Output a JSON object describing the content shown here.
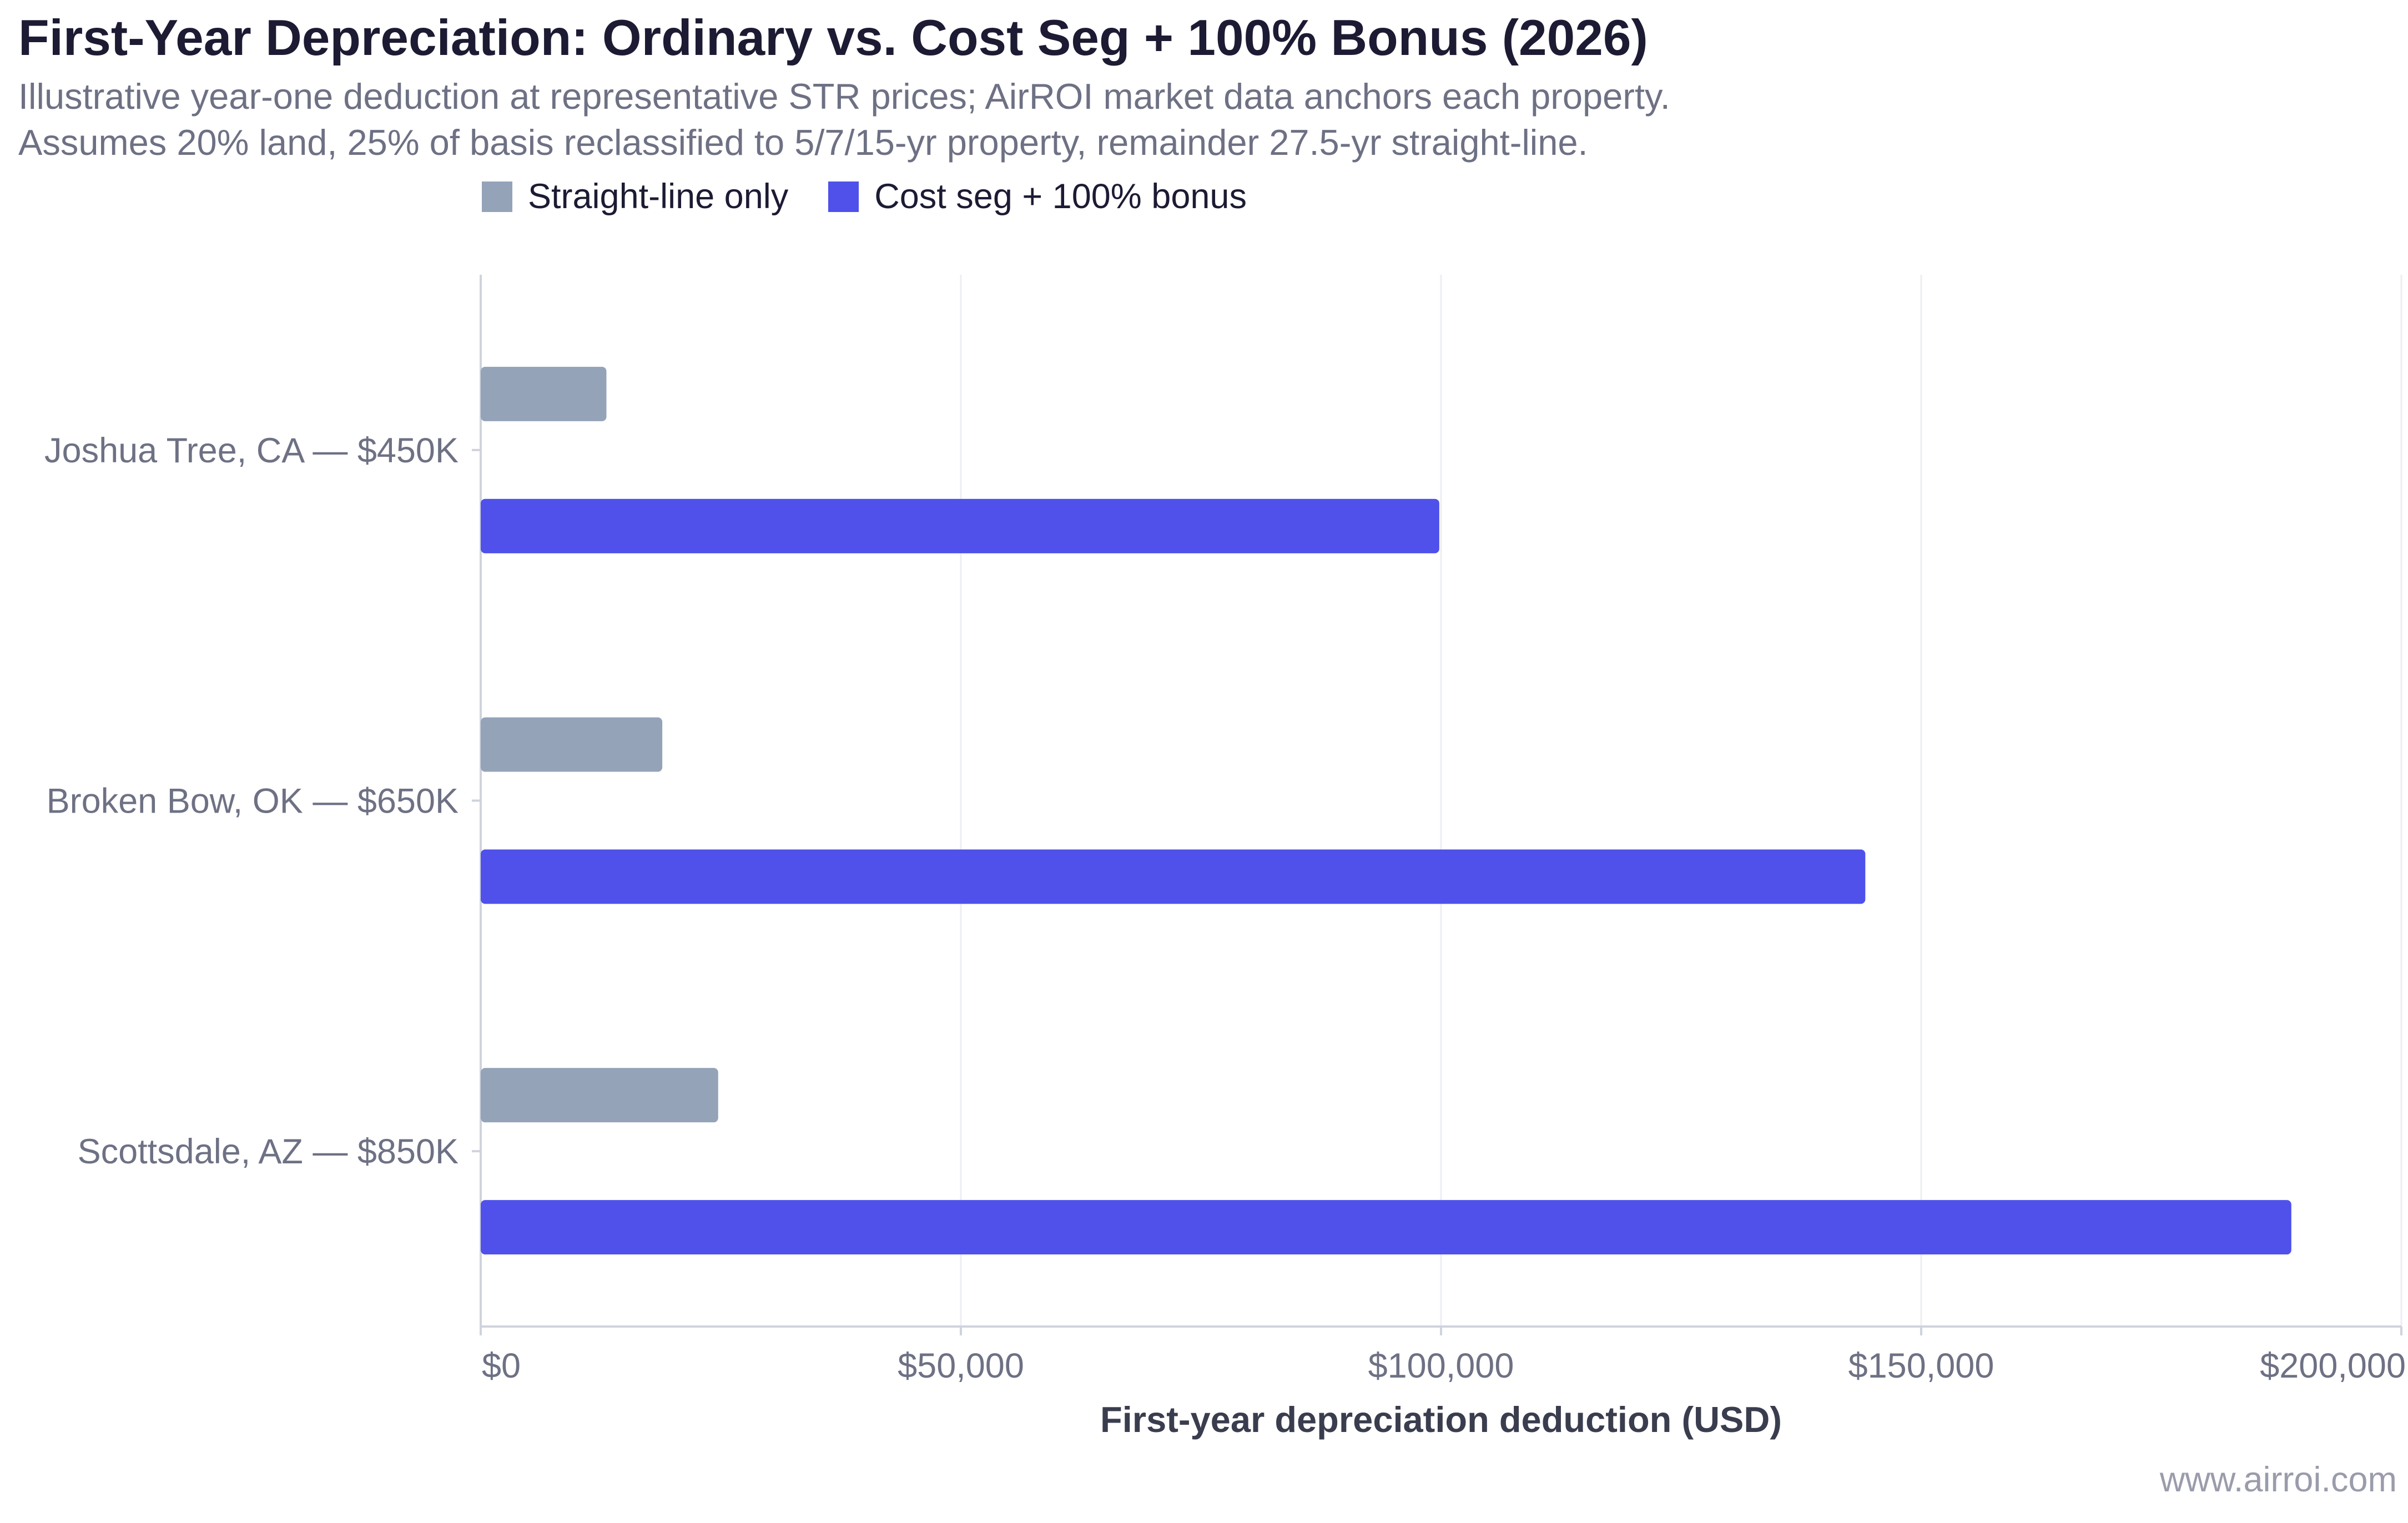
{
  "chart_data": {
    "type": "bar",
    "orientation": "horizontal",
    "title": "First-Year Depreciation: Ordinary vs. Cost Seg + 100% Bonus (2026)",
    "subtitle_lines": [
      "Illustrative year-one deduction at representative STR prices; AirROI market data anchors each property.",
      "Assumes 20% land, 25% of basis reclassified to 5/7/15-yr property, remainder 27.5-yr straight-line."
    ],
    "categories": [
      "Joshua Tree, CA — $450K",
      "Broken Bow, OK — $650K",
      "Scottsdale, AZ — $850K"
    ],
    "series": [
      {
        "name": "Straight-line only",
        "color": "#94a3b8",
        "values": [
          13091,
          18909,
          24727
        ]
      },
      {
        "name": "Cost seg + 100% bonus",
        "color": "#4f51ea",
        "values": [
          99818,
          144182,
          188545
        ]
      }
    ],
    "xlabel": "First-year depreciation deduction (USD)",
    "ylabel": "",
    "xlim": [
      0,
      200000
    ],
    "x_ticks": [
      0,
      50000,
      100000,
      150000,
      200000
    ],
    "x_tick_labels": [
      "$0",
      "$50,000",
      "$100,000",
      "$150,000",
      "$200,000"
    ],
    "grid": "vertical",
    "legend_position": "top"
  },
  "watermark": "www.airroi.com"
}
